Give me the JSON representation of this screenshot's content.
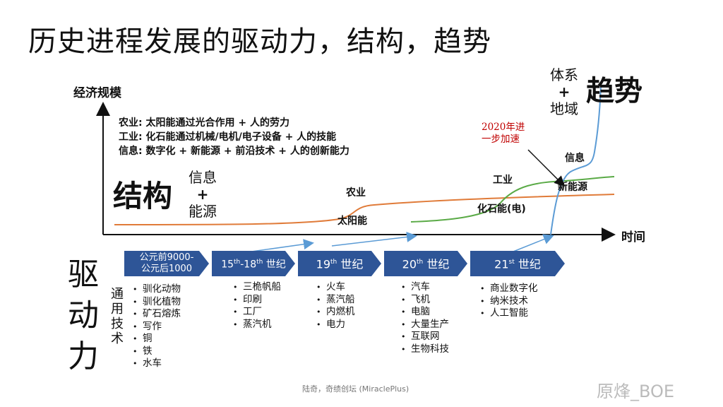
{
  "title": "历史进程发展的驱动力，结构，趋势",
  "chart": {
    "y_axis_label": "经济规模",
    "x_axis_label": "时间",
    "definitions": [
      "农业: 太阳能通过光合作用 + 人的劳力",
      "工业: 化石能通过机械/电机/电子设备 + 人的技能",
      "信息: 数字化 + 新能源 + 前沿技术 + 人的创新能力"
    ],
    "structure_label": "结构",
    "structure_sub": [
      "信息",
      "+",
      "能源"
    ],
    "trend_label": "趋势",
    "trend_sub": [
      "体系",
      "+",
      "地域"
    ],
    "annotation_2020": "2020年进\n一步加速",
    "curve_labels": {
      "agriculture": "农业",
      "solar": "太阳能",
      "industry": "工业",
      "fossil": "化石能(电)",
      "information": "信息",
      "new_energy": "新能源"
    },
    "colors": {
      "agriculture": "#e07b39",
      "industry": "#5aaa46",
      "information": "#5b9bd5",
      "era_fill": "#2e5597",
      "annotation": "#c00000"
    }
  },
  "drivers": {
    "label": "驱动力",
    "general_tech_label": "通用技术",
    "eras": [
      {
        "label_lines": [
          "公元前9000-",
          "公元后1000"
        ],
        "techs": [
          "驯化动物",
          "驯化植物",
          "矿石熔炼",
          "写作",
          "铜",
          "铁",
          "水车"
        ]
      },
      {
        "label_parts": [
          "15",
          "th",
          "-18",
          "th",
          " 世纪"
        ],
        "techs": [
          "三桅帆船",
          "印刷",
          "工厂",
          "蒸汽机"
        ]
      },
      {
        "label_parts": [
          "19",
          "th",
          " 世纪"
        ],
        "techs": [
          "火车",
          "蒸汽船",
          "内燃机",
          "电力"
        ]
      },
      {
        "label_parts": [
          "20",
          "th",
          " 世纪"
        ],
        "techs": [
          "汽车",
          "飞机",
          "电脑",
          "大量生产",
          "互联网",
          "生物科技"
        ]
      },
      {
        "label_parts": [
          "21",
          "st",
          " 世纪"
        ],
        "techs": [
          "商业数字化",
          "纳米技术",
          "人工智能"
        ]
      }
    ]
  },
  "footer": "陆奇，奇绩创坛 (MiraclePlus)",
  "watermark": "原烽_BOE"
}
